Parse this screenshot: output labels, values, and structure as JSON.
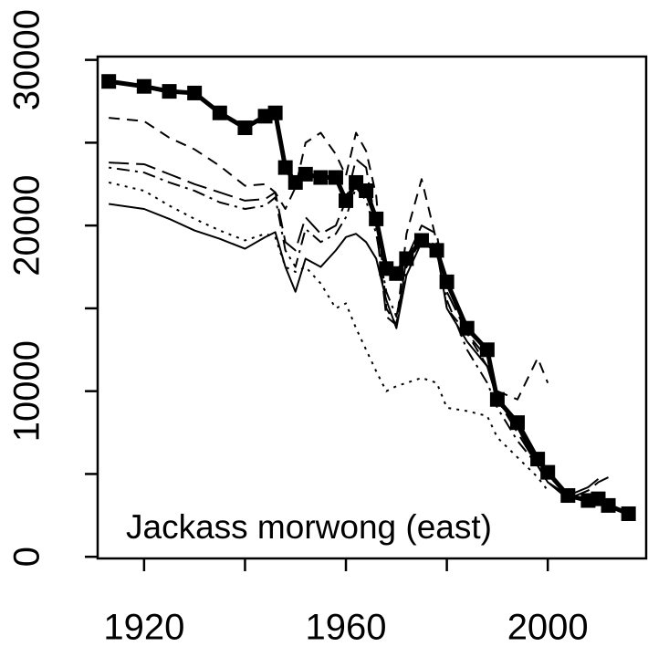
{
  "chart_data": {
    "type": "line",
    "annotation": "Jackass morwong (east)",
    "x": [
      1913,
      1920,
      1925,
      1930,
      1935,
      1940,
      1944,
      1946,
      1948,
      1950,
      1952,
      1955,
      1958,
      1960,
      1962,
      1964,
      1966,
      1968,
      1970,
      1972,
      1975,
      1978,
      1980,
      1984,
      1988,
      1990,
      1994,
      1998,
      2000,
      2004,
      2008,
      2010,
      2012,
      2016
    ],
    "series": [
      {
        "color": "#000000",
        "dash": "solid",
        "line_width": 5,
        "marker": "square",
        "values": [
          28700,
          28400,
          28100,
          28000,
          26800,
          25900,
          26600,
          26800,
          23500,
          22600,
          23100,
          22900,
          22900,
          21500,
          22600,
          22100,
          20400,
          17400,
          17100,
          18000,
          19100,
          18500,
          16600,
          13800,
          12500,
          9500,
          8100,
          5900,
          5100,
          3700,
          3400,
          3500,
          3100,
          2600
        ]
      },
      {
        "color": "#000000",
        "dash": "dashed",
        "line_width": 2,
        "values": [
          26500,
          26300,
          25300,
          24600,
          23600,
          22400,
          22500,
          22000,
          21000,
          22300,
          25000,
          25600,
          24300,
          23000,
          25600,
          24500,
          21800,
          15000,
          14000,
          19500,
          22800,
          19000,
          15000,
          13500,
          11500,
          10000,
          9500,
          12000,
          10500,
          null,
          null,
          null,
          null,
          null
        ]
      },
      {
        "color": "#000000",
        "dash": "longdash",
        "line_width": 2,
        "values": [
          23800,
          23700,
          23100,
          22500,
          22000,
          21500,
          21600,
          22000,
          19000,
          18500,
          20500,
          19500,
          20000,
          21500,
          24000,
          23500,
          20000,
          14500,
          14000,
          18000,
          20000,
          19500,
          16000,
          13500,
          12000,
          9500,
          7500,
          5500,
          4500,
          3500,
          4000,
          4500,
          4800,
          null
        ]
      },
      {
        "color": "#000000",
        "dash": "dotdash",
        "line_width": 2,
        "values": [
          23500,
          23200,
          22600,
          22100,
          21400,
          21000,
          21200,
          21700,
          18500,
          17500,
          19800,
          19000,
          19500,
          20500,
          22300,
          21500,
          19500,
          16000,
          14500,
          17500,
          19200,
          18800,
          15500,
          12500,
          10500,
          9000,
          7000,
          5500,
          4500,
          null,
          null,
          null,
          null,
          null
        ]
      },
      {
        "color": "#000000",
        "dash": "dotted",
        "line_width": 2,
        "values": [
          22600,
          22100,
          21200,
          20400,
          19700,
          19100,
          19500,
          19300,
          17500,
          17200,
          17500,
          16500,
          15000,
          15300,
          13800,
          12500,
          11200,
          10000,
          10300,
          10500,
          10800,
          10500,
          9000,
          8800,
          8500,
          7200,
          6000,
          4800,
          4000,
          null,
          null,
          null,
          null,
          null
        ]
      },
      {
        "color": "#000000",
        "dash": "solid",
        "line_width": 2,
        "values": [
          21300,
          21000,
          20400,
          19700,
          19200,
          18600,
          19300,
          19600,
          17500,
          16000,
          18000,
          17500,
          18500,
          19300,
          19500,
          19000,
          18000,
          15500,
          13800,
          17000,
          19000,
          18500,
          15000,
          13000,
          11500,
          9500,
          7800,
          5500,
          4500,
          3700,
          4200,
          4700,
          null,
          null
        ]
      }
    ],
    "xlim": [
      1910.8,
      2019.5
    ],
    "xticks": [
      1920,
      1960,
      2000
    ],
    "xminor_ticks": [
      1940,
      1980
    ],
    "ylim": [
      -100,
      30200
    ],
    "yticks": [
      0,
      10000,
      20000,
      30000
    ],
    "yminor_ticks": [
      5000,
      15000,
      25000
    ]
  }
}
